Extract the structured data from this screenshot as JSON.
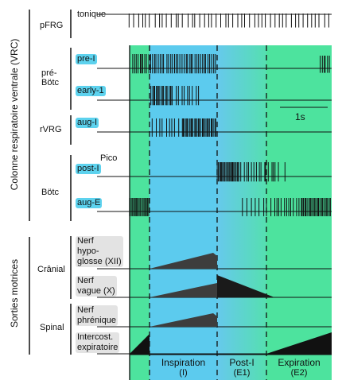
{
  "side_labels": {
    "vrc": "Colonne respiratoire ventrale (VRC)",
    "motor": "Sorties motrices"
  },
  "groups": {
    "pfrg": "pFRG",
    "prebotc": "pré-\nBötc",
    "rvrg": "rVRG",
    "botc": "Bötc",
    "cranial": "Crânial",
    "spinal": "Spinal"
  },
  "traces": {
    "tonique": "tonique",
    "pre_i": "pre-I",
    "early_i": "early-1",
    "aug_i": "aug-I",
    "pico": "Pico",
    "post_i": "post-I",
    "aug_e": "aug-E",
    "xii": "Nerf\nhypo-\nglosse (XII)",
    "x": "Nerf\nvague (X)",
    "phrenic": "Nerf\nphrénique",
    "intercost": "Intercost.\nexpiratoire"
  },
  "scale_bar": "1s",
  "phases": {
    "inspiration": {
      "name": "Inspiration",
      "code": "(I)"
    },
    "post_i": {
      "name": "Post-I",
      "code": "(E1)"
    },
    "expiration": {
      "name": "Expiration",
      "code": "(E2)"
    }
  },
  "colors": {
    "green": "#4de39e",
    "blue": "#5ccbee",
    "label_blue": "#5dd2ee",
    "label_grey": "#e3e3e3",
    "trace": "#111111"
  }
}
